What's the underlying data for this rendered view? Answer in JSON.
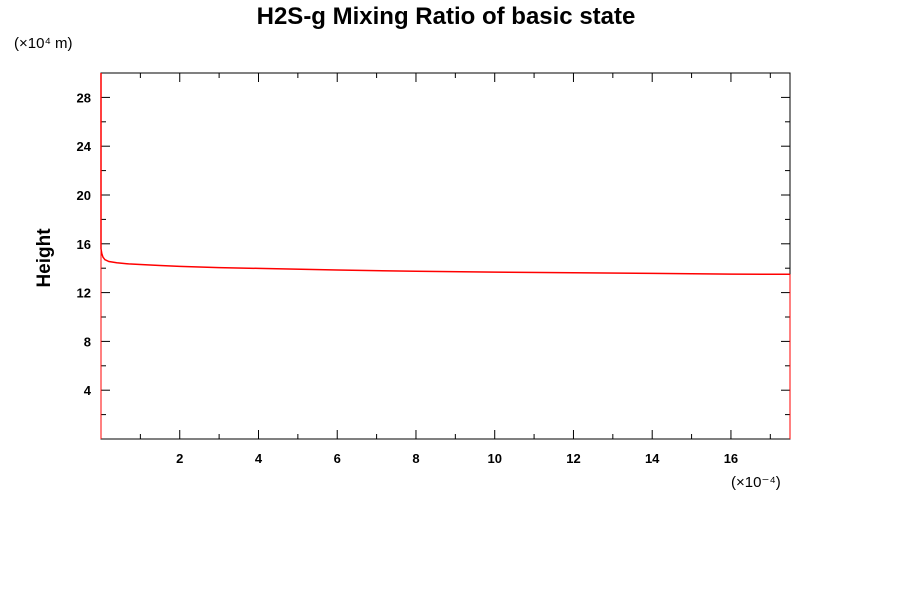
{
  "chart_data": {
    "type": "line",
    "title": "H2S-g Mixing Ratio of basic state",
    "ylabel": "Height",
    "xlabel": "",
    "x_scale_label": "(×10⁻⁴)",
    "y_unit_label": "(×10⁴ m)",
    "xlim": [
      0,
      17.5
    ],
    "ylim": [
      0,
      30
    ],
    "x_ticks": [
      2,
      4,
      6,
      8,
      10,
      12,
      14,
      16
    ],
    "x_tick_labels": [
      "2",
      "4",
      "6",
      "8",
      "10",
      "12",
      "14",
      "16"
    ],
    "x_minor_ticks": [
      1,
      3,
      5,
      7,
      9,
      11,
      13,
      15,
      17
    ],
    "y_ticks": [
      4,
      8,
      12,
      16,
      20,
      24,
      28
    ],
    "y_tick_labels": [
      "4",
      "8",
      "12",
      "16",
      "20",
      "24",
      "28"
    ],
    "y_minor_ticks": [
      2,
      6,
      10,
      14,
      18,
      22,
      26
    ],
    "grid": false,
    "series": [
      {
        "color": "#ff0000",
        "x": [
          0,
          0,
          0.02,
          0.05,
          0.1,
          0.2,
          0.4,
          0.7,
          1.0,
          1.5,
          2.0,
          3.0,
          4.0,
          6.0,
          8.0,
          10.0,
          12.0,
          14.0,
          16.0,
          17.5
        ],
        "y": [
          30,
          15.6,
          15.2,
          14.9,
          14.7,
          14.55,
          14.45,
          14.35,
          14.3,
          14.22,
          14.15,
          14.05,
          13.98,
          13.85,
          13.75,
          13.68,
          13.62,
          13.57,
          13.52,
          13.5
        ]
      }
    ]
  }
}
